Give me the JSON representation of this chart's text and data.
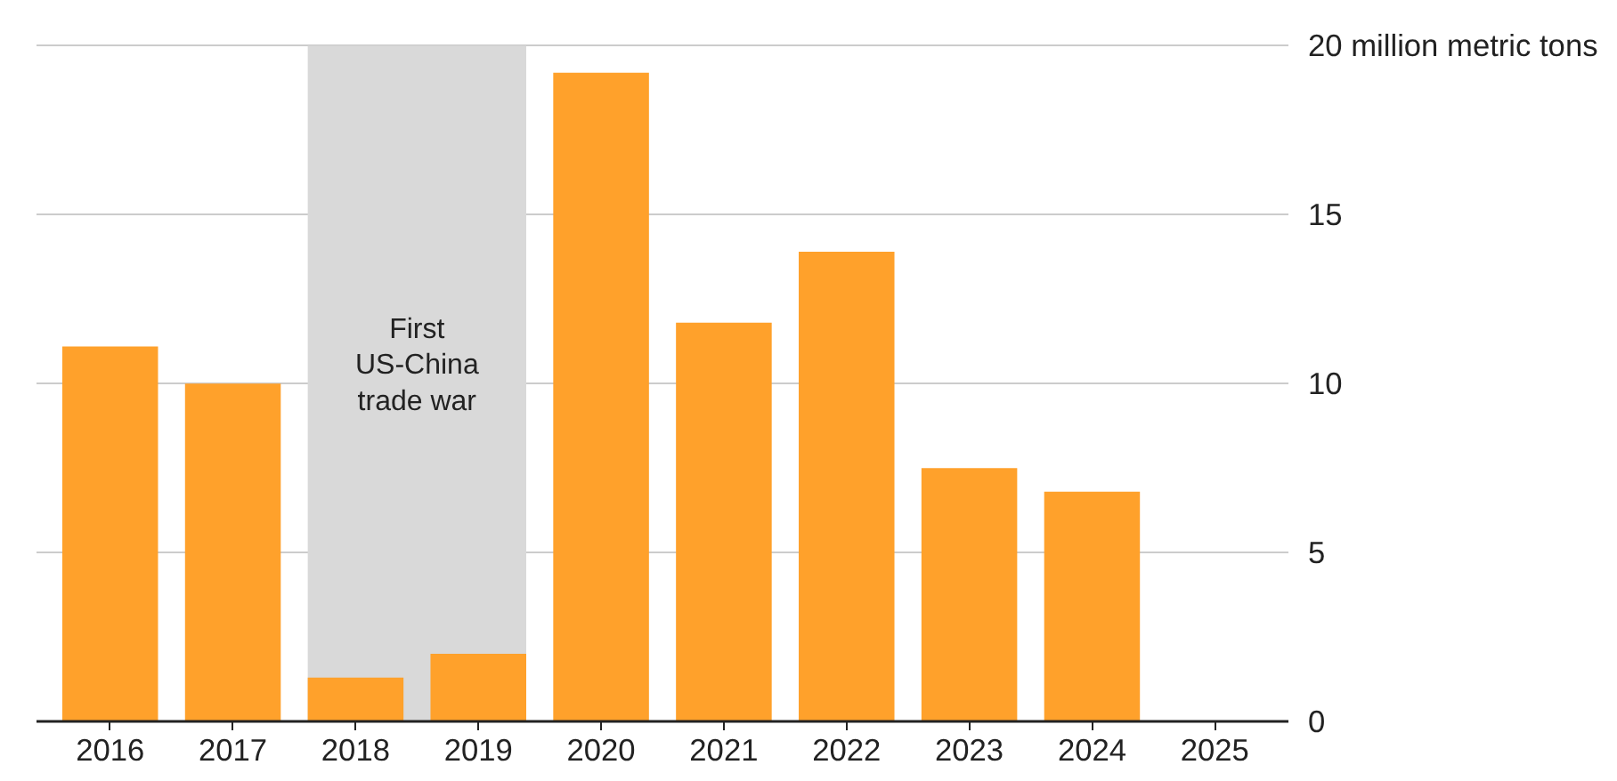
{
  "chart_data": {
    "type": "bar",
    "categories": [
      "2016",
      "2017",
      "2018",
      "2019",
      "2020",
      "2021",
      "2022",
      "2023",
      "2024",
      "2025"
    ],
    "values": [
      11.1,
      10.0,
      1.3,
      2.0,
      19.2,
      11.8,
      13.9,
      7.5,
      6.8,
      null
    ],
    "color": "#ffa12b",
    "ylim": [
      0,
      20
    ],
    "yticks": [
      0,
      5,
      10,
      15,
      {
        "value": 20,
        "label": "20 million metric tons"
      }
    ],
    "grid": "y",
    "bands": [
      {
        "axis": "x",
        "from": "2018",
        "to": "2019",
        "label": "First\nUS-China\ntrade war",
        "color": "#d9d9d9"
      }
    ]
  }
}
